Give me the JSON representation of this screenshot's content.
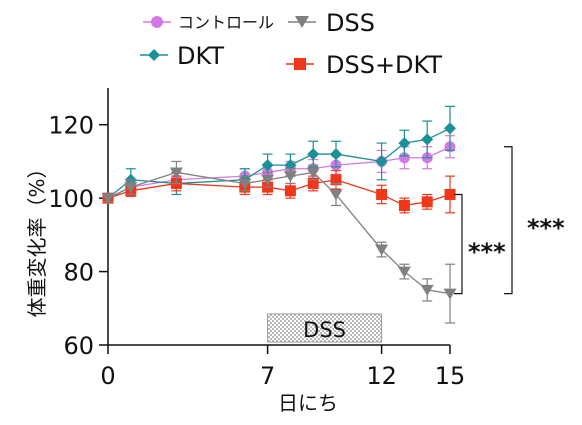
{
  "chart_data": {
    "type": "line",
    "title": "",
    "xlabel": "日にち",
    "ylabel": "体重変化率（%）",
    "xlim": [
      0,
      15
    ],
    "ylim": [
      60,
      130
    ],
    "xticks": [
      0,
      7,
      12,
      15
    ],
    "yticks": [
      60,
      80,
      100,
      120
    ],
    "grid": false,
    "legend_position": "top",
    "x": [
      0,
      1,
      3,
      6,
      7,
      8,
      9,
      10,
      12,
      13,
      14,
      15
    ],
    "series": [
      {
        "name": "コントロール",
        "color": "#d17ae6",
        "marker": "circle",
        "values": [
          100,
          103,
          105,
          106,
          107,
          108,
          108,
          109,
          110,
          111,
          111,
          114
        ],
        "errors": [
          1,
          1.5,
          2,
          2,
          2,
          2,
          2.5,
          2.5,
          3,
          3,
          3,
          3
        ]
      },
      {
        "name": "DKT",
        "color": "#1a9196",
        "marker": "diamond",
        "values": [
          100,
          105,
          104,
          105,
          109,
          109,
          112,
          112,
          110,
          115,
          116,
          119
        ],
        "errors": [
          1,
          3,
          3,
          3,
          3,
          3,
          3.5,
          3.5,
          5,
          3.5,
          5,
          6
        ]
      },
      {
        "name": "DSS",
        "color": "#808080",
        "marker": "triangle-down",
        "values": [
          100,
          103,
          107,
          104,
          105,
          106,
          107,
          101,
          86,
          80,
          75,
          74
        ],
        "errors": [
          1,
          2,
          3,
          2,
          2,
          2,
          2,
          3,
          2,
          2,
          3,
          8
        ]
      },
      {
        "name": "DSS+DKT",
        "color": "#f2361a",
        "marker": "square",
        "values": [
          100,
          102,
          104,
          103,
          103,
          102,
          104,
          105,
          101,
          98,
          99,
          101
        ],
        "errors": [
          1,
          1.5,
          2,
          2,
          2,
          2,
          2,
          2.5,
          2.5,
          2,
          2,
          5
        ]
      }
    ],
    "annotations": {
      "treatment_label": "DSS",
      "treatment_range": [
        7,
        12
      ],
      "significance": [
        {
          "label": "***",
          "y_range": [
            74,
            101
          ]
        },
        {
          "label": "***",
          "y_range": [
            74,
            114
          ]
        }
      ]
    }
  }
}
